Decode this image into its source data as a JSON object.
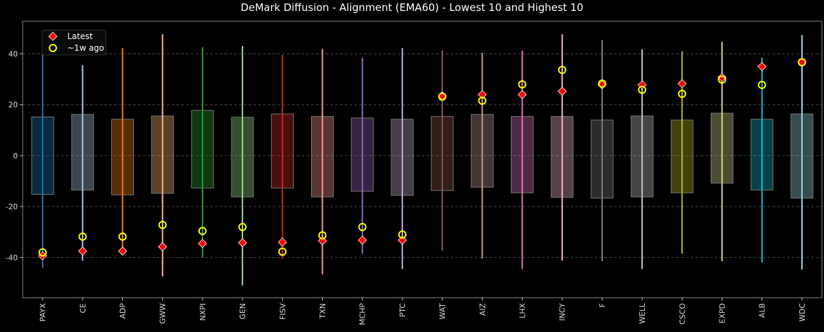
{
  "chart_data": {
    "type": "box",
    "title": "DeMark Diffusion - Alignment (EMA60) - Lowest 10 and Highest 10",
    "xlabel": "",
    "ylabel": "",
    "ylim": [
      -55.8,
      52.8
    ],
    "yticks": [
      -40,
      -20,
      0,
      20,
      40
    ],
    "grid": "horizontal dashed",
    "legend_placement": "top-left",
    "legend": [
      {
        "label": "Latest",
        "marker": "diamond",
        "color": "#ff0000"
      },
      {
        "label": "~1w ago",
        "marker": "open-circle",
        "color": "#ffff00"
      }
    ],
    "categories": [
      "PAYX",
      "CE",
      "ADP",
      "GWW",
      "NXPI",
      "GEN",
      "FISV",
      "TXN",
      "MCHP",
      "PTC",
      "WAT",
      "AIZ",
      "LHX",
      "INCY",
      "F",
      "WELL",
      "CSCO",
      "EXPD",
      "ALB",
      "WDC"
    ],
    "colors": [
      "#1f77b4",
      "#aec7e8",
      "#ff7f0e",
      "#ffbb78",
      "#2ca02c",
      "#98df8a",
      "#d62728",
      "#ff9896",
      "#9467bd",
      "#c5b0d5",
      "#8c564b",
      "#c49c94",
      "#e377c2",
      "#f7b6d2",
      "#7f7f7f",
      "#c7c7c7",
      "#bcbd22",
      "#dbdb8d",
      "#17becf",
      "#9edae5"
    ],
    "whisker_high": [
      45,
      35.6,
      42.3,
      47.7,
      42.6,
      43.1,
      39.6,
      42,
      38.5,
      42.3,
      41.5,
      40.4,
      41.2,
      47.7,
      45.5,
      41.8,
      41,
      44.7,
      38.5,
      47.4
    ],
    "box_high": [
      15.2,
      16.2,
      14.3,
      15.6,
      17.8,
      15.1,
      16.4,
      15.4,
      14.8,
      14.3,
      15.4,
      16.2,
      15.4,
      15.4,
      14,
      15.6,
      14,
      16.7,
      14.3,
      16.4
    ],
    "box_low": [
      -15.2,
      -13.5,
      -15.4,
      -14.8,
      -12.7,
      -16.2,
      -12.7,
      -16.2,
      -14,
      -15.6,
      -13.7,
      -12.4,
      -14.6,
      -16.4,
      -16.7,
      -16.2,
      -14.6,
      -10.8,
      -13.5,
      -16.7
    ],
    "whisker_low": [
      -44,
      -41.2,
      -37.5,
      -47.4,
      -40,
      -51,
      -40.4,
      -46.6,
      -38.5,
      -44.5,
      -37.2,
      -40.4,
      -44.5,
      -41.2,
      -41.5,
      -44.5,
      -38.5,
      -41.5,
      -42,
      -44.7
    ],
    "latest": [
      -39.3,
      -37.5,
      -37.5,
      -35.8,
      -34.5,
      -34.2,
      -34,
      -33.4,
      -33.2,
      -33.2,
      23.5,
      24,
      24,
      25.3,
      27.8,
      27.8,
      28.3,
      30.7,
      35,
      36.7
    ],
    "week_ago": [
      -38,
      -31.8,
      -31.8,
      -27.2,
      -29.6,
      -28,
      -37.7,
      -31.3,
      -28,
      -31,
      23.2,
      21.6,
      28,
      33.7,
      28.3,
      25.9,
      24.3,
      29.9,
      27.8,
      36.7
    ]
  }
}
